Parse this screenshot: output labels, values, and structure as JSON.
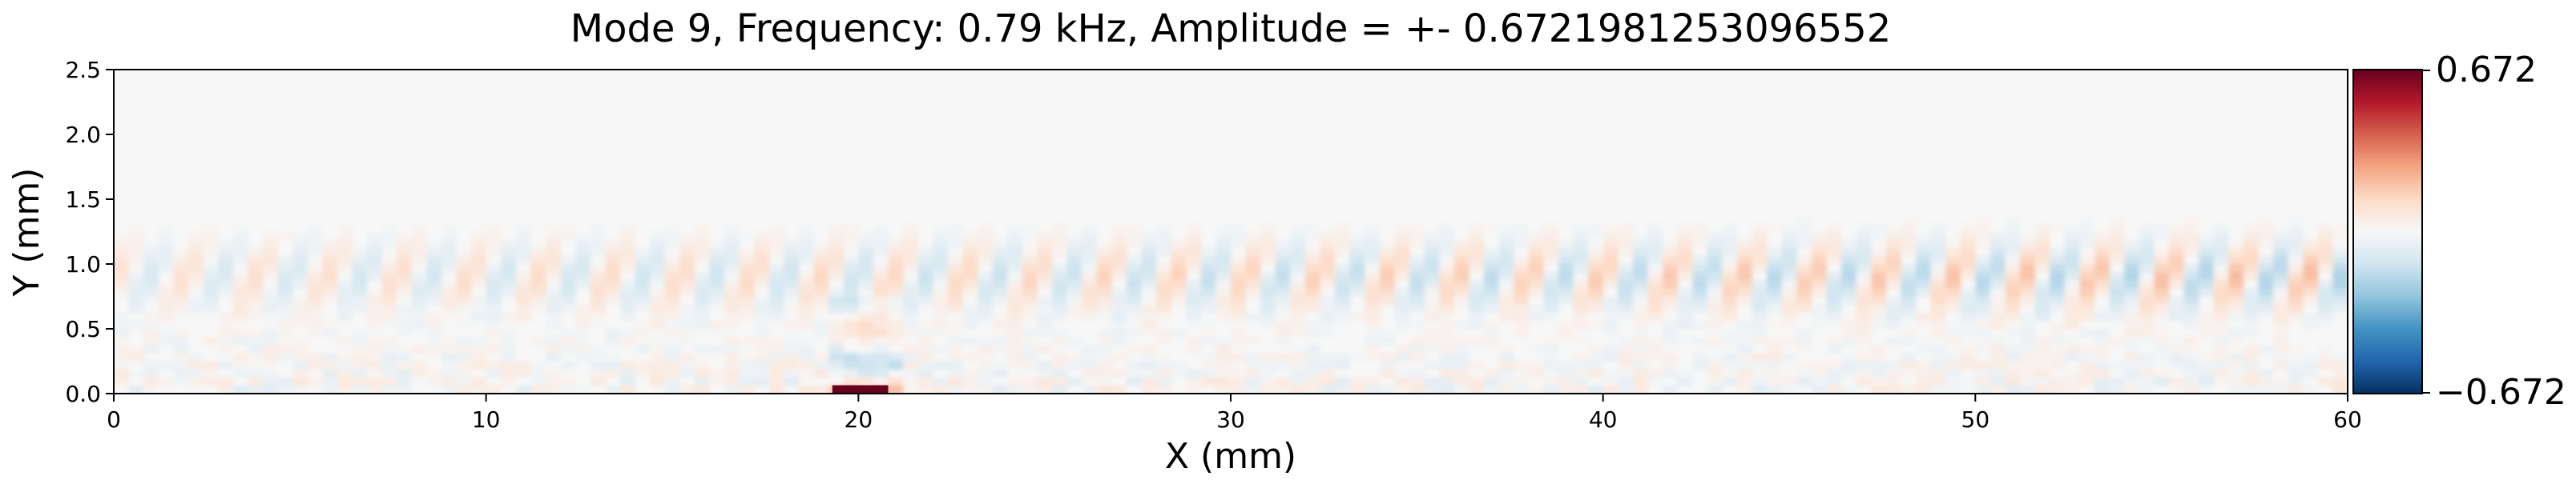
{
  "chart_data": {
    "type": "heatmap",
    "title": "Mode 9, Frequency: 0.79 kHz, Amplitude = +- 0.6721981253096552",
    "xlabel": "X (mm)",
    "ylabel": "Y (mm)",
    "xlim": [
      0,
      60
    ],
    "ylim": [
      0,
      2.5
    ],
    "x_ticks": [
      0,
      10,
      20,
      30,
      40,
      50,
      60
    ],
    "x_tick_labels": [
      "0",
      "10",
      "20",
      "30",
      "40",
      "50",
      "60"
    ],
    "y_ticks": [
      0.0,
      0.5,
      1.0,
      1.5,
      2.0,
      2.5
    ],
    "y_tick_labels": [
      "0.0",
      "0.5",
      "1.0",
      "1.5",
      "2.0",
      "2.5"
    ],
    "grid": false,
    "colormap": "RdBu_r",
    "vmin": -0.672,
    "vmax": 0.672,
    "colorbar": {
      "max_label": "0.672",
      "min_label": "−0.672",
      "colors": [
        "#053061",
        "#2166ac",
        "#4393c3",
        "#92c5de",
        "#d1e5f0",
        "#f7f7f7",
        "#fddbc7",
        "#f4a582",
        "#d6604d",
        "#b2182b",
        "#67001f"
      ]
    },
    "features": {
      "source_strip": {
        "x_start": 19.3,
        "x_end": 20.8,
        "y_start": 0.0,
        "y_end": 0.04,
        "value": 0.672
      },
      "oscillation_band": {
        "y_start": 0.55,
        "y_end": 1.25,
        "typical_amplitude": 0.15
      }
    }
  }
}
